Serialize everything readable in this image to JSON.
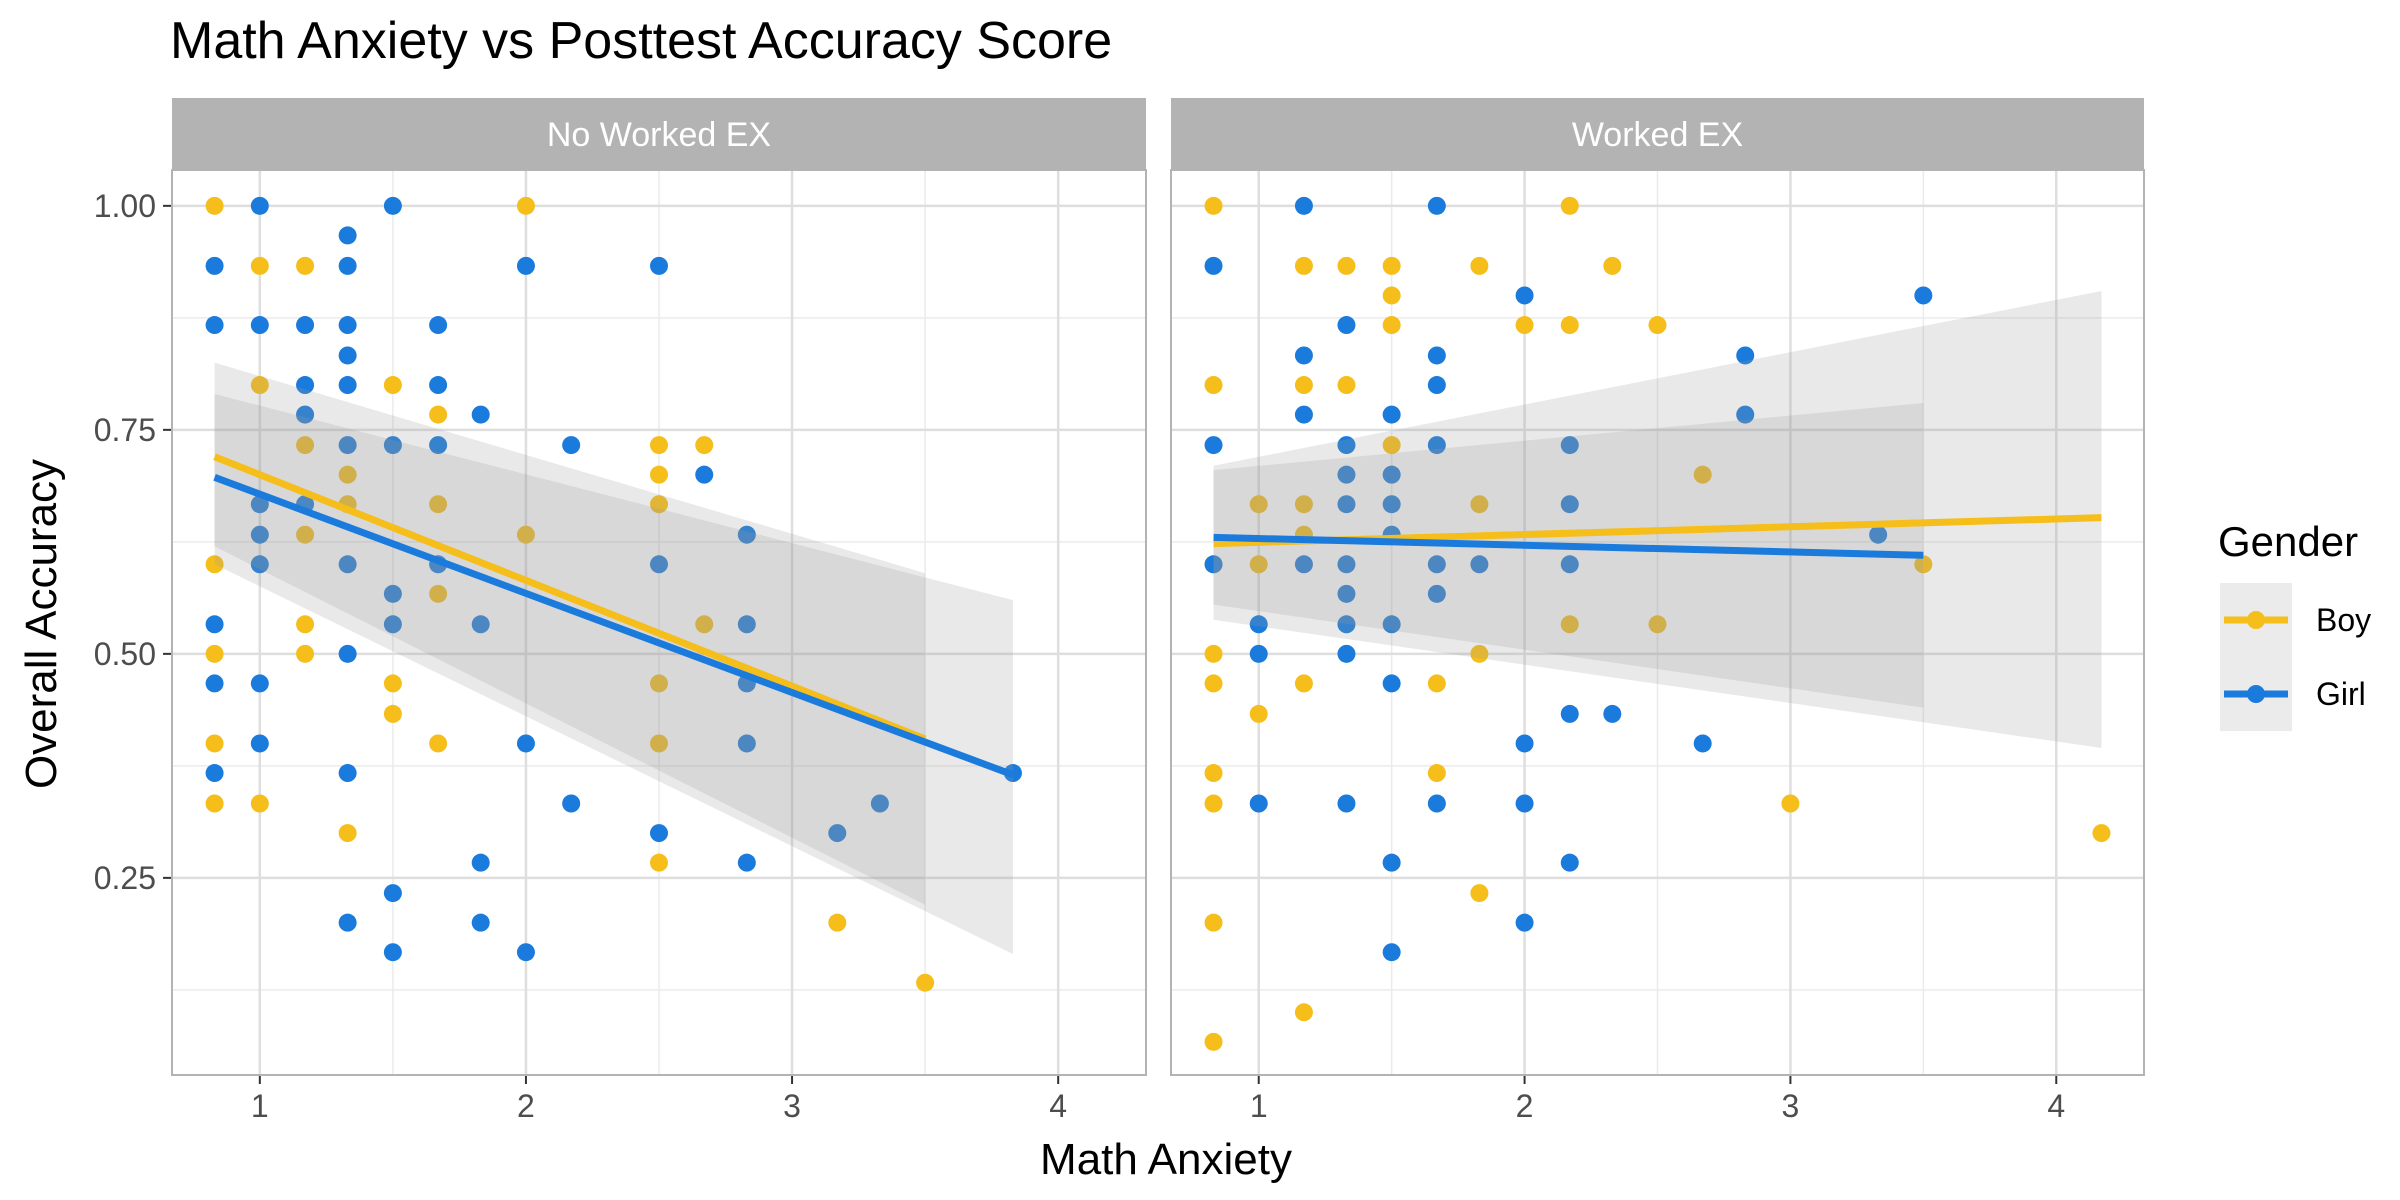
{
  "chart_data": {
    "type": "scatter",
    "title": "Math Anxiety vs Posttest Accuracy Score",
    "xlabel": "Math Anxiety",
    "ylabel": "Overall Accuracy",
    "xlim": [
      0.67,
      4.33
    ],
    "ylim": [
      0.03,
      1.04
    ],
    "x_ticks": [
      "1",
      "2",
      "3",
      "4"
    ],
    "y_ticks": [
      "0.25",
      "0.50",
      "0.75",
      "1.00"
    ],
    "grid": true,
    "legend": {
      "title": "Gender",
      "position": "right",
      "entries": [
        {
          "name": "Boy",
          "color": "#F5BE1B"
        },
        {
          "name": "Girl",
          "color": "#1A7BDC"
        }
      ]
    },
    "panels": [
      {
        "label": "No Worked EX",
        "series": [
          {
            "name": "Boy",
            "points": [
              [
                0.83,
                1.0
              ],
              [
                0.83,
                0.6
              ],
              [
                0.83,
                0.5
              ],
              [
                0.83,
                0.4
              ],
              [
                0.83,
                0.333
              ],
              [
                1.0,
                0.933
              ],
              [
                1.0,
                0.8
              ],
              [
                1.0,
                0.333
              ],
              [
                1.17,
                0.933
              ],
              [
                1.17,
                0.733
              ],
              [
                1.17,
                0.633
              ],
              [
                1.17,
                0.533
              ],
              [
                1.17,
                0.5
              ],
              [
                1.33,
                0.7
              ],
              [
                1.33,
                0.667
              ],
              [
                1.33,
                0.3
              ],
              [
                1.5,
                0.8
              ],
              [
                1.5,
                0.467
              ],
              [
                1.5,
                0.433
              ],
              [
                1.67,
                0.767
              ],
              [
                1.67,
                0.667
              ],
              [
                1.67,
                0.567
              ],
              [
                1.67,
                0.4
              ],
              [
                2.0,
                1.0
              ],
              [
                2.0,
                0.633
              ],
              [
                2.5,
                0.733
              ],
              [
                2.5,
                0.7
              ],
              [
                2.5,
                0.667
              ],
              [
                2.5,
                0.467
              ],
              [
                2.5,
                0.4
              ],
              [
                2.5,
                0.267
              ],
              [
                2.67,
                0.733
              ],
              [
                2.67,
                0.533
              ],
              [
                3.17,
                0.2
              ],
              [
                3.5,
                0.133
              ]
            ],
            "fit": {
              "x": [
                0.83,
                3.5
              ],
              "y": [
                0.72,
                0.405
              ]
            },
            "ci": {
              "x": [
                0.83,
                3.5
              ],
              "upper": [
                0.825,
                0.59
              ],
              "lower": [
                0.62,
                0.22
              ]
            }
          },
          {
            "name": "Girl",
            "points": [
              [
                0.83,
                0.933
              ],
              [
                0.83,
                0.867
              ],
              [
                0.83,
                0.533
              ],
              [
                0.83,
                0.467
              ],
              [
                0.83,
                0.367
              ],
              [
                1.0,
                1.0
              ],
              [
                1.0,
                0.867
              ],
              [
                1.0,
                0.667
              ],
              [
                1.0,
                0.633
              ],
              [
                1.0,
                0.6
              ],
              [
                1.0,
                0.467
              ],
              [
                1.0,
                0.4
              ],
              [
                1.17,
                0.867
              ],
              [
                1.17,
                0.8
              ],
              [
                1.17,
                0.767
              ],
              [
                1.17,
                0.667
              ],
              [
                1.33,
                0.967
              ],
              [
                1.33,
                0.933
              ],
              [
                1.33,
                0.867
              ],
              [
                1.33,
                0.833
              ],
              [
                1.33,
                0.8
              ],
              [
                1.33,
                0.733
              ],
              [
                1.33,
                0.6
              ],
              [
                1.33,
                0.5
              ],
              [
                1.33,
                0.367
              ],
              [
                1.33,
                0.2
              ],
              [
                1.5,
                1.0
              ],
              [
                1.5,
                0.733
              ],
              [
                1.5,
                0.567
              ],
              [
                1.5,
                0.533
              ],
              [
                1.5,
                0.233
              ],
              [
                1.5,
                0.167
              ],
              [
                1.67,
                0.867
              ],
              [
                1.67,
                0.8
              ],
              [
                1.67,
                0.733
              ],
              [
                1.67,
                0.6
              ],
              [
                1.83,
                0.767
              ],
              [
                1.83,
                0.533
              ],
              [
                1.83,
                0.267
              ],
              [
                1.83,
                0.2
              ],
              [
                2.0,
                0.933
              ],
              [
                2.0,
                0.4
              ],
              [
                2.0,
                0.167
              ],
              [
                2.17,
                0.733
              ],
              [
                2.17,
                0.333
              ],
              [
                2.5,
                0.933
              ],
              [
                2.5,
                0.6
              ],
              [
                2.5,
                0.3
              ],
              [
                2.67,
                0.7
              ],
              [
                2.83,
                0.633
              ],
              [
                2.83,
                0.533
              ],
              [
                2.83,
                0.467
              ],
              [
                2.83,
                0.4
              ],
              [
                2.83,
                0.267
              ],
              [
                3.17,
                0.3
              ],
              [
                3.33,
                0.333
              ],
              [
                3.83,
                0.367
              ]
            ],
            "fit": {
              "x": [
                0.83,
                3.83
              ],
              "y": [
                0.697,
                0.365
              ]
            },
            "ci": {
              "x": [
                0.83,
                3.83
              ],
              "upper": [
                0.79,
                0.56
              ],
              "lower": [
                0.6,
                0.165
              ]
            }
          }
        ]
      },
      {
        "label": "Worked EX",
        "series": [
          {
            "name": "Boy",
            "points": [
              [
                0.83,
                1.0
              ],
              [
                0.83,
                0.8
              ],
              [
                0.83,
                0.6
              ],
              [
                0.83,
                0.5
              ],
              [
                0.83,
                0.467
              ],
              [
                0.83,
                0.367
              ],
              [
                0.83,
                0.333
              ],
              [
                0.83,
                0.2
              ],
              [
                0.83,
                0.067
              ],
              [
                1.0,
                0.667
              ],
              [
                1.0,
                0.6
              ],
              [
                1.0,
                0.433
              ],
              [
                1.17,
                0.933
              ],
              [
                1.17,
                0.8
              ],
              [
                1.17,
                0.667
              ],
              [
                1.17,
                0.633
              ],
              [
                1.17,
                0.467
              ],
              [
                1.17,
                0.1
              ],
              [
                1.33,
                0.933
              ],
              [
                1.33,
                0.8
              ],
              [
                1.5,
                0.933
              ],
              [
                1.5,
                0.9
              ],
              [
                1.5,
                0.867
              ],
              [
                1.5,
                0.733
              ],
              [
                1.67,
                0.467
              ],
              [
                1.67,
                0.367
              ],
              [
                1.83,
                0.933
              ],
              [
                1.83,
                0.667
              ],
              [
                1.83,
                0.5
              ],
              [
                1.83,
                0.233
              ],
              [
                2.0,
                0.867
              ],
              [
                2.17,
                1.0
              ],
              [
                2.17,
                0.867
              ],
              [
                2.17,
                0.533
              ],
              [
                2.33,
                0.933
              ],
              [
                2.5,
                0.867
              ],
              [
                2.5,
                0.533
              ],
              [
                2.67,
                0.7
              ],
              [
                3.0,
                0.333
              ],
              [
                3.5,
                0.6
              ],
              [
                4.17,
                0.3
              ]
            ],
            "fit": {
              "x": [
                0.83,
                4.17
              ],
              "y": [
                0.623,
                0.652
              ]
            },
            "ci": {
              "x": [
                0.83,
                4.17
              ],
              "upper": [
                0.71,
                0.905
              ],
              "lower": [
                0.538,
                0.395
              ]
            }
          },
          {
            "name": "Girl",
            "points": [
              [
                0.83,
                0.933
              ],
              [
                0.83,
                0.733
              ],
              [
                0.83,
                0.6
              ],
              [
                1.0,
                0.533
              ],
              [
                1.0,
                0.5
              ],
              [
                1.0,
                0.333
              ],
              [
                1.17,
                1.0
              ],
              [
                1.17,
                0.833
              ],
              [
                1.17,
                0.767
              ],
              [
                1.17,
                0.6
              ],
              [
                1.33,
                0.867
              ],
              [
                1.33,
                0.733
              ],
              [
                1.33,
                0.7
              ],
              [
                1.33,
                0.667
              ],
              [
                1.33,
                0.6
              ],
              [
                1.33,
                0.567
              ],
              [
                1.33,
                0.533
              ],
              [
                1.33,
                0.5
              ],
              [
                1.33,
                0.333
              ],
              [
                1.5,
                0.767
              ],
              [
                1.5,
                0.7
              ],
              [
                1.5,
                0.667
              ],
              [
                1.5,
                0.633
              ],
              [
                1.5,
                0.533
              ],
              [
                1.5,
                0.467
              ],
              [
                1.5,
                0.267
              ],
              [
                1.5,
                0.167
              ],
              [
                1.67,
                1.0
              ],
              [
                1.67,
                0.833
              ],
              [
                1.67,
                0.8
              ],
              [
                1.67,
                0.733
              ],
              [
                1.67,
                0.6
              ],
              [
                1.67,
                0.567
              ],
              [
                1.67,
                0.333
              ],
              [
                1.83,
                0.6
              ],
              [
                2.0,
                0.9
              ],
              [
                2.0,
                0.4
              ],
              [
                2.0,
                0.333
              ],
              [
                2.0,
                0.2
              ],
              [
                2.17,
                0.733
              ],
              [
                2.17,
                0.667
              ],
              [
                2.17,
                0.6
              ],
              [
                2.17,
                0.433
              ],
              [
                2.17,
                0.267
              ],
              [
                2.33,
                0.433
              ],
              [
                2.67,
                0.4
              ],
              [
                2.83,
                0.833
              ],
              [
                2.83,
                0.767
              ],
              [
                3.33,
                0.633
              ],
              [
                3.5,
                0.9
              ]
            ],
            "fit": {
              "x": [
                0.83,
                3.5
              ],
              "y": [
                0.63,
                0.61
              ]
            },
            "ci": {
              "x": [
                0.83,
                3.5
              ],
              "upper": [
                0.705,
                0.78
              ],
              "lower": [
                0.555,
                0.44
              ]
            }
          }
        ]
      }
    ]
  }
}
